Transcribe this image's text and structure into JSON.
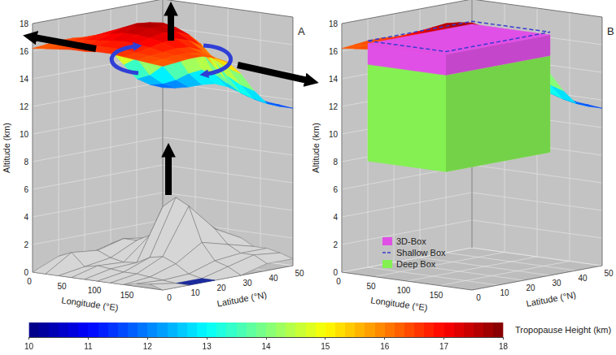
{
  "chart_data": [
    {
      "type": "surface3d",
      "panel_label": "A",
      "xlabel": "Longitude (°E)",
      "ylabel": "Latitude (°N)",
      "zlabel": "Altitude (km)",
      "xlim": [
        0,
        200
      ],
      "xticks": [
        0,
        50,
        100,
        150
      ],
      "ylim": [
        0,
        50
      ],
      "yticks": [
        0,
        10,
        20,
        30,
        40,
        50
      ],
      "zlim": [
        0,
        18
      ],
      "zticks": [
        0,
        2,
        4,
        6,
        8,
        10,
        12,
        14,
        16,
        18
      ],
      "grid": true,
      "terrain": {
        "x": [
          0,
          20,
          40,
          60,
          80,
          100,
          120,
          140,
          160,
          180,
          200
        ],
        "y": [
          0,
          10,
          20,
          30,
          40,
          50
        ],
        "values": [
          [
            0,
            0,
            0,
            0,
            0,
            0,
            0,
            0,
            0.2,
            0.3,
            0
          ],
          [
            0.8,
            1.2,
            0.3,
            0.5,
            0.4,
            0.3,
            0.3,
            0.2,
            0.1,
            0,
            0
          ],
          [
            0.5,
            1.0,
            0.6,
            0.4,
            0.5,
            1.0,
            1.2,
            0.8,
            0.2,
            0,
            0
          ],
          [
            1.0,
            1.5,
            1.5,
            2.0,
            4.2,
            5.0,
            4.5,
            2.0,
            0.8,
            0.5,
            0
          ],
          [
            0.8,
            1.2,
            1.5,
            2.0,
            2.5,
            3.0,
            2.5,
            1.5,
            1.0,
            1.0,
            0.5
          ],
          [
            0.5,
            0.5,
            0.8,
            1.0,
            1.5,
            1.5,
            1.5,
            1.0,
            1.0,
            0.8,
            0.5
          ]
        ]
      }
    },
    {
      "type": "surface3d",
      "panel_label": "B",
      "xlabel": "Longitude (°E)",
      "ylabel": "Latitude (°N)",
      "zlabel": "Altitude (km)",
      "xlim": [
        0,
        200
      ],
      "xticks": [
        0,
        50,
        100,
        150
      ],
      "ylim": [
        0,
        50
      ],
      "yticks": [
        0,
        10,
        20,
        30,
        40,
        50
      ],
      "zlim": [
        0,
        18
      ],
      "zticks": [
        0,
        2,
        4,
        6,
        8,
        10,
        12,
        14,
        16,
        18
      ],
      "grid": true,
      "legend": "lower left",
      "boxes": [
        {
          "name": "3D-Box",
          "color": "#e050e6",
          "lon": [
            20,
            140
          ],
          "lat": [
            5,
            45
          ],
          "alt": [
            15,
            16.5
          ]
        },
        {
          "name": "Shallow Box",
          "color": "#3a3ad0",
          "line_style": "dashed",
          "lon": [
            20,
            140
          ],
          "lat": [
            5,
            45
          ],
          "alt": [
            13,
            16.7
          ]
        },
        {
          "name": "Deep Box",
          "color": "#84f052",
          "lon": [
            20,
            140
          ],
          "lat": [
            5,
            45
          ],
          "alt": [
            8,
            15
          ]
        }
      ]
    }
  ],
  "tropopause_surface": {
    "x": [
      0,
      20,
      40,
      60,
      80,
      100,
      120,
      140,
      160,
      180,
      200
    ],
    "y": [
      0,
      5,
      10,
      15,
      20,
      25,
      30,
      35,
      40,
      45,
      50
    ],
    "tropopause_height": [
      [
        16.2,
        16.3,
        16.4,
        16.5,
        16.5,
        16.6,
        16.6,
        16.5,
        16.4,
        16.3,
        16.2
      ],
      [
        16.3,
        16.4,
        16.5,
        16.6,
        16.7,
        16.7,
        16.7,
        16.6,
        16.5,
        16.4,
        16.3
      ],
      [
        16.4,
        16.5,
        16.7,
        16.8,
        16.9,
        17.0,
        16.9,
        16.8,
        16.6,
        16.5,
        16.4
      ],
      [
        16.4,
        16.6,
        16.9,
        17.1,
        17.3,
        17.3,
        17.2,
        17.0,
        16.7,
        16.5,
        16.4
      ],
      [
        16.2,
        16.6,
        17.0,
        17.4,
        17.6,
        17.6,
        17.4,
        17.1,
        16.6,
        16.3,
        16.1
      ],
      [
        15.8,
        16.3,
        16.9,
        17.5,
        17.7,
        17.6,
        17.3,
        16.8,
        16.2,
        15.8,
        15.6
      ],
      [
        15.0,
        15.6,
        16.5,
        17.2,
        17.5,
        17.3,
        16.9,
        16.2,
        15.4,
        14.9,
        14.6
      ],
      [
        13.8,
        14.4,
        15.5,
        16.5,
        16.9,
        16.6,
        16.0,
        15.0,
        14.0,
        13.5,
        13.2
      ],
      [
        12.6,
        13.0,
        13.8,
        14.8,
        15.5,
        15.2,
        14.2,
        13.2,
        12.6,
        12.3,
        12.1
      ],
      [
        12.0,
        12.2,
        12.6,
        13.2,
        13.6,
        13.4,
        12.8,
        12.3,
        12.0,
        11.8,
        11.7
      ],
      [
        11.6,
        11.7,
        11.9,
        12.2,
        12.4,
        12.3,
        12.0,
        11.8,
        11.6,
        11.5,
        11.4
      ]
    ]
  },
  "colorbar": {
    "label": "Tropopause Height (km)",
    "range": [
      10,
      18
    ],
    "ticks": [
      10,
      11,
      12,
      13,
      14,
      15,
      16,
      17,
      18
    ]
  }
}
